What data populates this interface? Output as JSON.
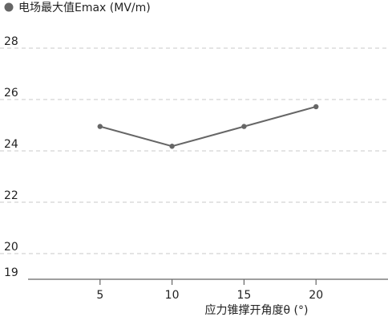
{
  "chart_data": {
    "type": "line",
    "x": [
      5,
      10,
      15,
      20
    ],
    "series": [
      {
        "name": "电场最大值Emax (MV/m)",
        "values": [
          24.95,
          24.18,
          24.95,
          25.72
        ],
        "color": "#666666"
      }
    ],
    "xlabel": "应力锥撑开角度θ (°)",
    "ylabel": "",
    "xticks": [
      "5",
      "10",
      "15",
      "20"
    ],
    "yticks": [
      "28",
      "26",
      "24",
      "22",
      "20",
      "19"
    ],
    "xlim": [
      0,
      25
    ],
    "ylim": [
      19,
      29
    ],
    "grid": true,
    "legend": "top-left"
  }
}
